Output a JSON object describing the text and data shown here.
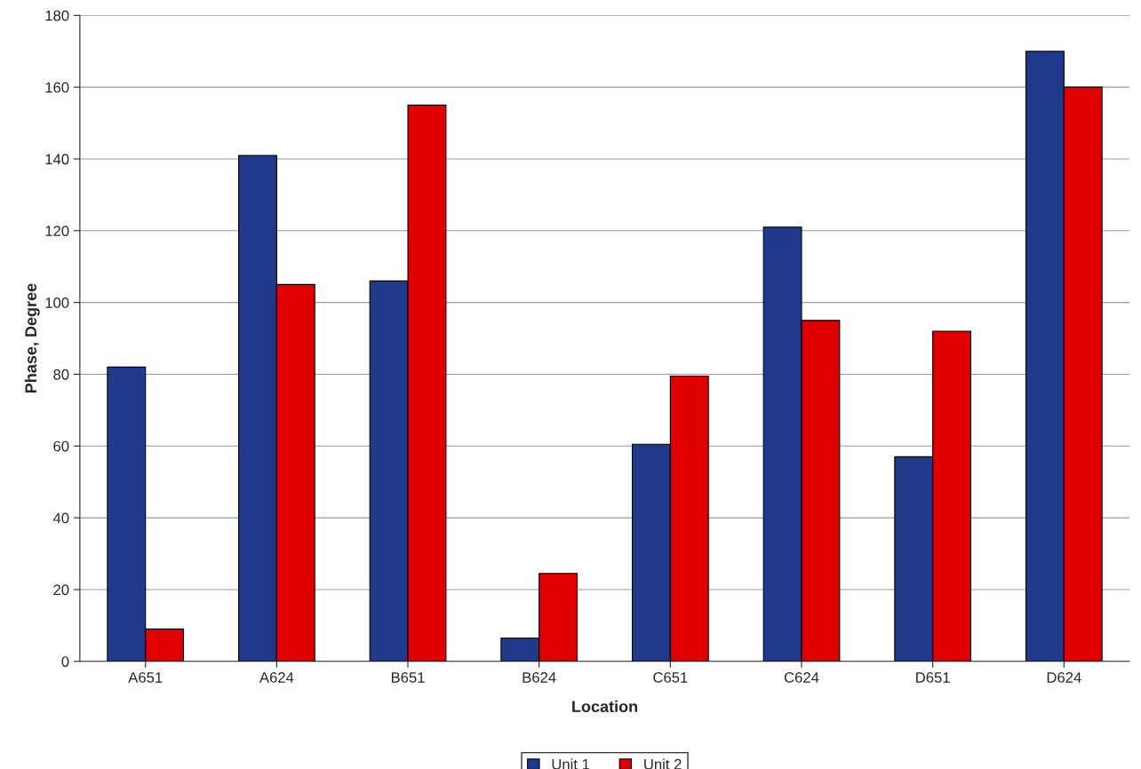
{
  "chart_data": {
    "type": "bar",
    "xlabel": "Location",
    "ylabel": "Phase, Degree",
    "categories": [
      "A651",
      "A624",
      "B651",
      "B624",
      "C651",
      "C624",
      "D651",
      "D624"
    ],
    "series": [
      {
        "name": "Unit 1",
        "color": "#1f3a8a",
        "values": [
          82,
          141,
          106,
          6.5,
          60.5,
          121,
          57,
          170
        ]
      },
      {
        "name": "Unit 2",
        "color": "#e00000",
        "values": [
          9,
          105,
          155,
          24.5,
          79.5,
          95,
          92,
          160
        ]
      }
    ],
    "ylim": [
      0,
      180
    ],
    "yticks": [
      0,
      20,
      40,
      60,
      80,
      100,
      120,
      140,
      160,
      180
    ],
    "grid": "y",
    "legend": "bottom"
  }
}
